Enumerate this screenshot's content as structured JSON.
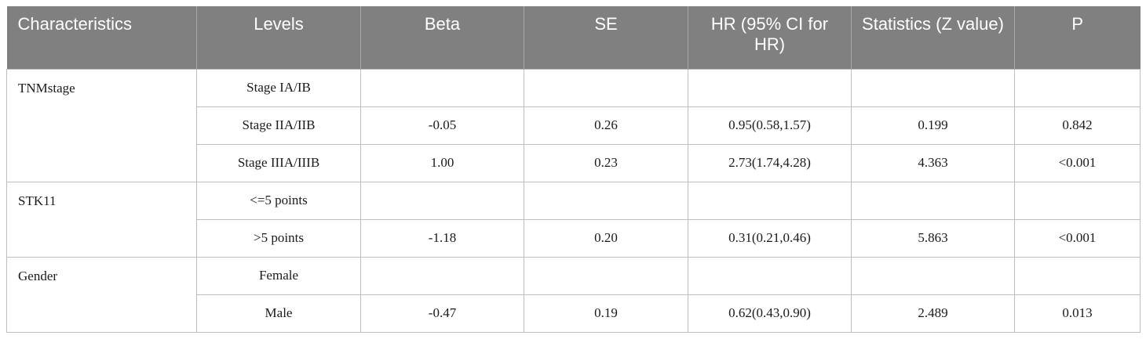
{
  "table": {
    "headers": [
      "Characteristics",
      "Levels",
      "Beta",
      "SE",
      "HR (95% CI for HR)",
      "Statistics (Z value)",
      "P"
    ],
    "groups": [
      {
        "characteristic": "TNMstage",
        "rows": [
          {
            "level": "Stage IA/IB",
            "beta": "",
            "se": "",
            "hr": "",
            "z": "",
            "p": ""
          },
          {
            "level": "Stage IIA/IIB",
            "beta": "-0.05",
            "se": "0.26",
            "hr": "0.95(0.58,1.57)",
            "z": "0.199",
            "p": "0.842"
          },
          {
            "level": "Stage IIIA/IIIB",
            "beta": "1.00",
            "se": "0.23",
            "hr": "2.73(1.74,4.28)",
            "z": "4.363",
            "p": "<0.001"
          }
        ]
      },
      {
        "characteristic": "STK11",
        "rows": [
          {
            "level": "<=5 points",
            "beta": "",
            "se": "",
            "hr": "",
            "z": "",
            "p": ""
          },
          {
            "level": ">5 points",
            "beta": "-1.18",
            "se": "0.20",
            "hr": "0.31(0.21,0.46)",
            "z": "5.863",
            "p": "<0.001"
          }
        ]
      },
      {
        "characteristic": "Gender",
        "rows": [
          {
            "level": "Female",
            "beta": "",
            "se": "",
            "hr": "",
            "z": "",
            "p": ""
          },
          {
            "level": "Male",
            "beta": "-0.47",
            "se": "0.19",
            "hr": "0.62(0.43,0.90)",
            "z": "2.489",
            "p": "0.013"
          }
        ]
      }
    ]
  }
}
